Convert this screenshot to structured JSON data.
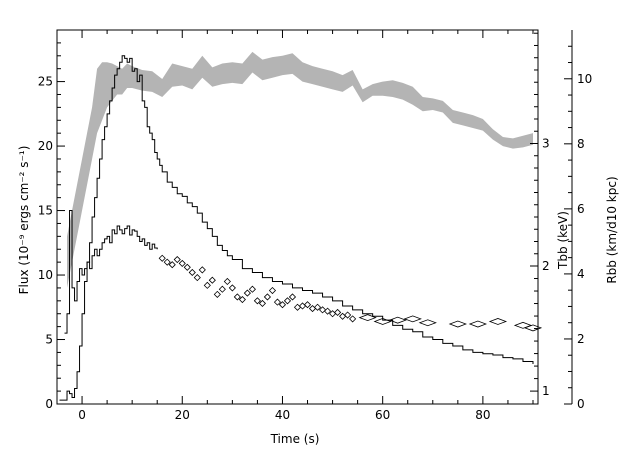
{
  "chart_data": {
    "type": "line",
    "title": "",
    "xlabel": "Time (s)",
    "ylabel": "Flux (10⁻⁹ ergs cm⁻² s⁻¹)",
    "xlim": [
      -5,
      91
    ],
    "ylim": [
      0,
      29
    ],
    "grid": false,
    "xticks": [
      0,
      20,
      40,
      60,
      80
    ],
    "yticks": [
      0,
      5,
      10,
      15,
      20,
      25
    ],
    "right_axes": [
      {
        "label": "Tbb (keV)",
        "ticks": [
          {
            "label": "1",
            "flux_position": 1.0
          },
          {
            "label": "2",
            "flux_position": 10.7
          },
          {
            "label": "3",
            "flux_position": 20.2
          }
        ]
      },
      {
        "label": "Rbb (km/d10 kpc)",
        "range": [
          0,
          11.5
        ],
        "ticks": [
          0,
          2,
          4,
          6,
          8,
          10
        ]
      }
    ],
    "series": [
      {
        "name": "",
        "style": "gray band",
        "x": [
          -3,
          -2,
          -1,
          0,
          1,
          2,
          3,
          4,
          5,
          6,
          7,
          8,
          9,
          10,
          12,
          14,
          16,
          18,
          20,
          22,
          24,
          26,
          28,
          30,
          32,
          34,
          36,
          38,
          40,
          42,
          44,
          46,
          48,
          50,
          52,
          54,
          56,
          58,
          60,
          62,
          64,
          66,
          68,
          70,
          72,
          74,
          76,
          78,
          80,
          82,
          84,
          86,
          88,
          90
        ],
        "lower": [
          9,
          11,
          13,
          15,
          17,
          19,
          21,
          22,
          23,
          23.5,
          24,
          24,
          24.5,
          24.5,
          24.3,
          24.2,
          23.8,
          24.6,
          24.7,
          24.4,
          25.3,
          24.6,
          24.8,
          24.9,
          24.8,
          25.7,
          25.1,
          25.3,
          25.5,
          25.6,
          25.0,
          24.8,
          24.6,
          24.4,
          24.2,
          24.7,
          23.4,
          23.9,
          23.9,
          23.8,
          23.6,
          23.2,
          22.7,
          22.8,
          22.6,
          21.8,
          21.6,
          21.4,
          21.2,
          20.5,
          20.0,
          19.8,
          19.9,
          20.1
        ],
        "upper": [
          13,
          15,
          17,
          19,
          21,
          23,
          26,
          26.5,
          26.5,
          26.4,
          26.2,
          26.0,
          26.4,
          26.2,
          25.9,
          25.8,
          25.2,
          26.4,
          26.2,
          26.0,
          27.0,
          26.1,
          26.4,
          26.5,
          26.4,
          27.3,
          26.7,
          26.9,
          27.0,
          27.2,
          26.5,
          26.2,
          26.0,
          25.8,
          25.5,
          25.9,
          24.4,
          24.8,
          25.0,
          25.1,
          24.9,
          24.6,
          23.8,
          23.7,
          23.5,
          22.8,
          22.6,
          22.4,
          22.1,
          21.3,
          20.7,
          20.6,
          20.8,
          21.0
        ]
      },
      {
        "name": "",
        "style": "black line",
        "x": [
          -4.5,
          -3.5,
          -3.0,
          -2.5,
          -2.0,
          -1.5,
          -1.0,
          -0.5,
          0,
          0.5,
          1,
          1.5,
          2,
          2.5,
          3,
          3.5,
          4,
          4.5,
          5,
          5.5,
          6,
          6.5,
          7,
          7.5,
          8,
          8.5,
          9,
          9.5,
          10,
          10.5,
          11,
          11.5,
          12,
          12.5,
          13,
          13.5,
          14,
          14.5,
          15,
          15.5,
          16,
          17,
          18,
          19,
          20,
          21,
          22,
          23,
          24,
          25,
          26,
          27,
          28,
          29,
          30,
          32,
          34,
          36,
          38,
          40,
          42,
          44,
          46,
          48,
          50,
          52,
          54,
          56,
          58,
          60,
          62,
          64,
          66,
          68,
          70,
          72,
          74,
          76,
          78,
          80,
          82,
          84,
          86,
          88,
          90
        ],
        "y": [
          0.3,
          0.3,
          1.0,
          0.8,
          0.5,
          1.2,
          2.5,
          4.5,
          7.0,
          9.5,
          11.0,
          12.5,
          14.5,
          16.0,
          17.5,
          19.0,
          20.5,
          21.5,
          22.5,
          23.5,
          24.5,
          25.5,
          26.0,
          26.5,
          27.0,
          26.8,
          26.5,
          26.8,
          25.8,
          26.0,
          25.0,
          25.5,
          23.5,
          23.0,
          21.5,
          21.0,
          20.5,
          19.5,
          19.0,
          18.5,
          18.0,
          17.2,
          16.8,
          16.3,
          16.1,
          15.6,
          15.3,
          14.8,
          14.1,
          13.6,
          13.0,
          12.3,
          11.9,
          11.5,
          11.2,
          10.5,
          10.2,
          9.8,
          9.5,
          9.3,
          9.0,
          8.8,
          8.6,
          8.3,
          8.0,
          7.6,
          7.3,
          7.0,
          6.8,
          6.5,
          6.1,
          5.8,
          5.6,
          5.2,
          5.0,
          4.7,
          4.5,
          4.2,
          4.0,
          3.9,
          3.8,
          3.6,
          3.5,
          3.3,
          3.1
        ]
      },
      {
        "name": "",
        "style": "black line",
        "x": [
          -3.5,
          -3.0,
          -2.5,
          -2.0,
          -1.5,
          -1.0,
          -0.5,
          0,
          0.5,
          1,
          1.5,
          2,
          2.5,
          3,
          3.5,
          4,
          4.5,
          5,
          5.5,
          6,
          6.5,
          7,
          7.5,
          8,
          8.5,
          9,
          9.5,
          10,
          10.5,
          11,
          11.5,
          12,
          12.5,
          13,
          13.5,
          14,
          14.5,
          15
        ],
        "y": [
          5.5,
          7.0,
          15.0,
          9.0,
          8.0,
          9.5,
          10.5,
          10.0,
          10.5,
          11.0,
          10.5,
          11.5,
          12.0,
          11.5,
          12.0,
          12.5,
          12.8,
          13.0,
          12.5,
          13.5,
          13.2,
          13.8,
          13.5,
          13.2,
          13.6,
          13.8,
          13.1,
          13.5,
          13.4,
          13.0,
          12.6,
          12.8,
          12.3,
          12.5,
          12.0,
          12.4,
          12.1,
          12.0
        ]
      },
      {
        "name": "",
        "style": "diamonds",
        "x": [
          16,
          17,
          18,
          19,
          20,
          21,
          22,
          23,
          24,
          25,
          26,
          27,
          28,
          29,
          30,
          31,
          32,
          33,
          34,
          35,
          36,
          37,
          38,
          39,
          40,
          41,
          42,
          43,
          44,
          45,
          46,
          47,
          48,
          49,
          50,
          51,
          52,
          53,
          54,
          57,
          60,
          63,
          66,
          69,
          75,
          79,
          83,
          88,
          90
        ],
        "y": [
          11.3,
          11.0,
          10.8,
          11.2,
          10.9,
          10.6,
          10.2,
          9.8,
          10.4,
          9.2,
          9.6,
          8.5,
          8.9,
          9.5,
          9.0,
          8.3,
          8.1,
          8.6,
          8.9,
          8.0,
          7.8,
          8.3,
          8.8,
          7.9,
          7.7,
          8.0,
          8.3,
          7.5,
          7.6,
          7.7,
          7.4,
          7.5,
          7.3,
          7.2,
          7.0,
          7.1,
          6.8,
          6.9,
          6.6,
          6.7,
          6.4,
          6.5,
          6.6,
          6.3,
          6.2,
          6.2,
          6.4,
          6.1,
          5.9
        ]
      }
    ]
  }
}
